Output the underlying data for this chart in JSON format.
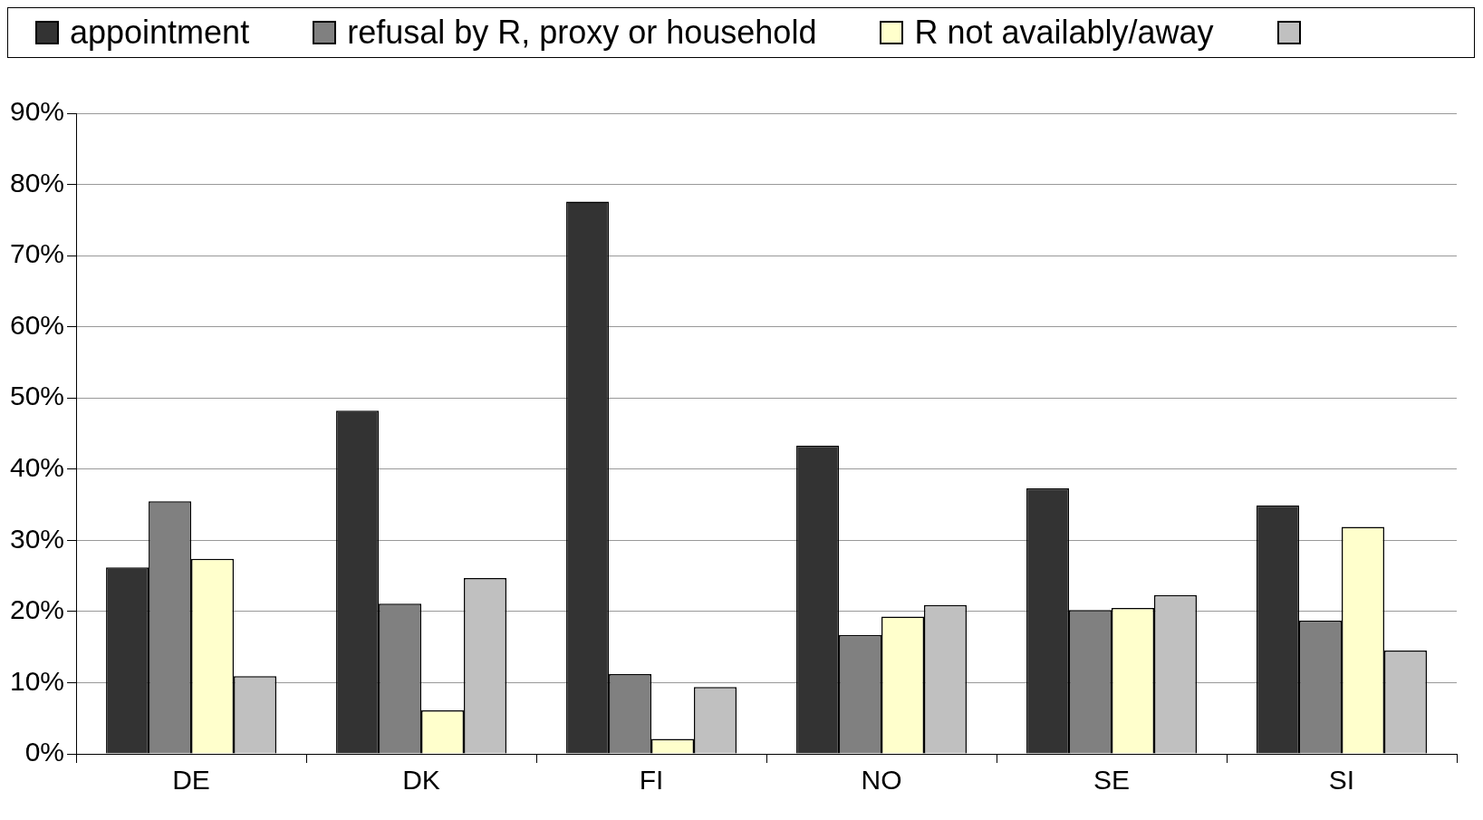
{
  "chart_data": {
    "type": "bar",
    "categories": [
      "DE",
      "DK",
      "FI",
      "NO",
      "SE",
      "SI"
    ],
    "series": [
      {
        "name": "appointment",
        "color": "#333333",
        "values": [
          26.2,
          48.2,
          77.6,
          43.3,
          37.3,
          34.9
        ]
      },
      {
        "name": "refusal by R, proxy or household",
        "color": "#808080",
        "values": [
          35.5,
          21.1,
          11.2,
          16.7,
          20.2,
          18.7
        ]
      },
      {
        "name": "R not availably/away",
        "color": "#ffffcc",
        "values": [
          27.4,
          6.1,
          2.1,
          19.3,
          20.5,
          31.9
        ]
      },
      {
        "color": "#c0c0c0",
        "values": [
          10.9,
          24.7,
          9.4,
          20.9,
          22.3,
          14.5
        ]
      }
    ],
    "ylim": [
      0,
      90
    ],
    "yticks": [
      {
        "value": 0,
        "label": "0%"
      },
      {
        "value": 10,
        "label": "10%"
      },
      {
        "value": 20,
        "label": "20%"
      },
      {
        "value": 30,
        "label": "30%"
      },
      {
        "value": 40,
        "label": "40%"
      },
      {
        "value": 50,
        "label": "50%"
      },
      {
        "value": 60,
        "label": "60%"
      },
      {
        "value": 70,
        "label": "70%"
      },
      {
        "value": 80,
        "label": "80%"
      },
      {
        "value": 90,
        "label": "90%"
      }
    ],
    "grid": "y",
    "legend": "top"
  }
}
